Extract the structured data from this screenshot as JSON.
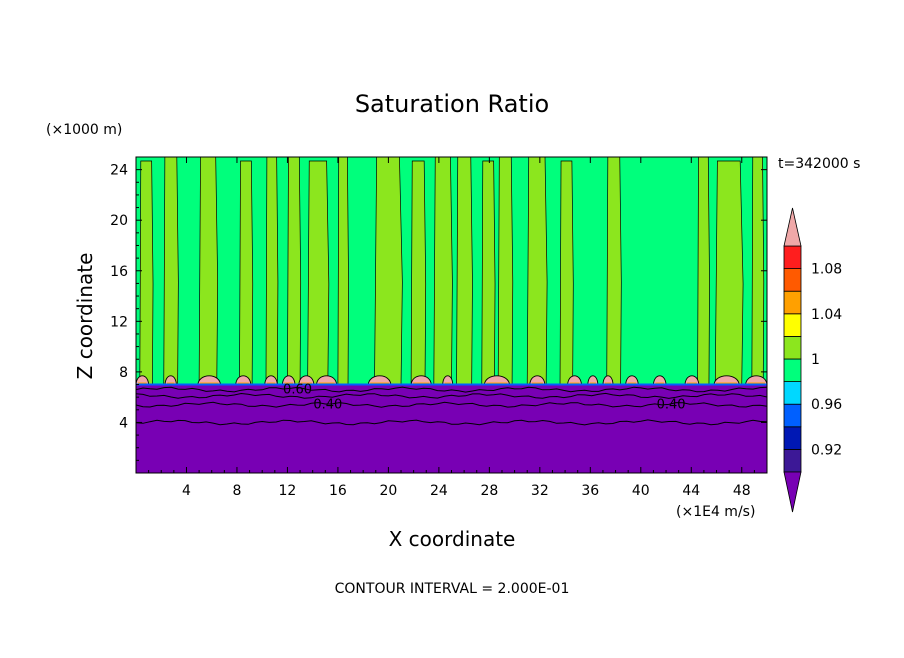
{
  "chart_data": {
    "type": "heatmap",
    "title": "Saturation Ratio",
    "xlabel": "X coordinate",
    "ylabel": "Z coordinate",
    "x_unit_label": "(×1E4 m/s)",
    "y_unit_label": "(×1000 m)",
    "time_label": "t=342000 s",
    "contour_interval_label": "CONTOUR INTERVAL = 2.000E-01",
    "xlim": [
      0,
      50
    ],
    "ylim": [
      0,
      25
    ],
    "x_ticks": [
      4,
      8,
      12,
      16,
      20,
      24,
      28,
      32,
      36,
      40,
      44,
      48
    ],
    "y_ticks": [
      4,
      8,
      12,
      16,
      20,
      24
    ],
    "x_tick_labels": [
      "4",
      "8",
      "12",
      "16",
      "20",
      "24",
      "28",
      "32",
      "36",
      "40",
      "44",
      "48"
    ],
    "y_tick_labels": [
      "4",
      "8",
      "12",
      "16",
      "20",
      "24"
    ],
    "colorbar": {
      "tick_labels": [
        "1.08",
        "1.04",
        "1",
        "0.96",
        "0.92"
      ],
      "tick_values": [
        1.08,
        1.04,
        1.0,
        0.96,
        0.92
      ],
      "levels": [
        0.9,
        0.92,
        0.94,
        0.96,
        0.98,
        1.0,
        1.02,
        1.04,
        1.06,
        1.08,
        1.1
      ],
      "colors": [
        "#3c1896",
        "#0018b4",
        "#0060ff",
        "#00d8ff",
        "#00ff7c",
        "#8ce61e",
        "#ffff00",
        "#ffa000",
        "#ff5a00",
        "#ff1e1e"
      ],
      "under_color": "#7800b4",
      "over_color": "#f0a8a8"
    },
    "contour_labels": [
      {
        "text": "0.40",
        "x": 15.2,
        "z": 5.5
      },
      {
        "text": "0.40",
        "x": 42.4,
        "z": 5.5
      },
      {
        "text": "0.60",
        "x": 12.8,
        "z": 6.7
      }
    ],
    "regions": {
      "low_layer_top_z": 7.0,
      "upper_background": "#00ff7c",
      "column_color": "#8ce61e",
      "cap_color": "#f0a8a8",
      "low_color": "#7800b4",
      "columns_x": [
        [
          0.3,
          1.3
        ],
        [
          2.2,
          3.3
        ],
        [
          5.0,
          6.4
        ],
        [
          8.2,
          9.2
        ],
        [
          10.3,
          11.2
        ],
        [
          12.0,
          13.0
        ],
        [
          13.6,
          15.2
        ],
        [
          16.0,
          16.8
        ],
        [
          18.9,
          21.0
        ],
        [
          21.8,
          22.9
        ],
        [
          23.6,
          25.0
        ],
        [
          25.4,
          26.6
        ],
        [
          27.4,
          28.4
        ],
        [
          28.7,
          29.8
        ],
        [
          31.0,
          32.5
        ],
        [
          33.6,
          34.6
        ],
        [
          37.3,
          38.4
        ],
        [
          44.5,
          45.4
        ],
        [
          45.9,
          48.0
        ],
        [
          48.8,
          49.7
        ]
      ],
      "caps_x": [
        [
          0.0,
          1.0
        ],
        [
          2.3,
          3.2
        ],
        [
          4.9,
          6.7
        ],
        [
          7.9,
          9.1
        ],
        [
          10.2,
          11.2
        ],
        [
          11.6,
          12.6
        ],
        [
          12.9,
          14.1
        ],
        [
          14.3,
          15.9
        ],
        [
          18.4,
          20.2
        ],
        [
          21.8,
          23.4
        ],
        [
          24.3,
          25.1
        ],
        [
          27.6,
          29.6
        ],
        [
          31.2,
          32.4
        ],
        [
          34.2,
          35.3
        ],
        [
          35.8,
          36.6
        ],
        [
          37.0,
          37.8
        ],
        [
          38.8,
          39.8
        ],
        [
          41.0,
          42.0
        ],
        [
          43.5,
          44.6
        ],
        [
          45.8,
          47.8
        ],
        [
          48.3,
          50.0
        ]
      ]
    }
  }
}
